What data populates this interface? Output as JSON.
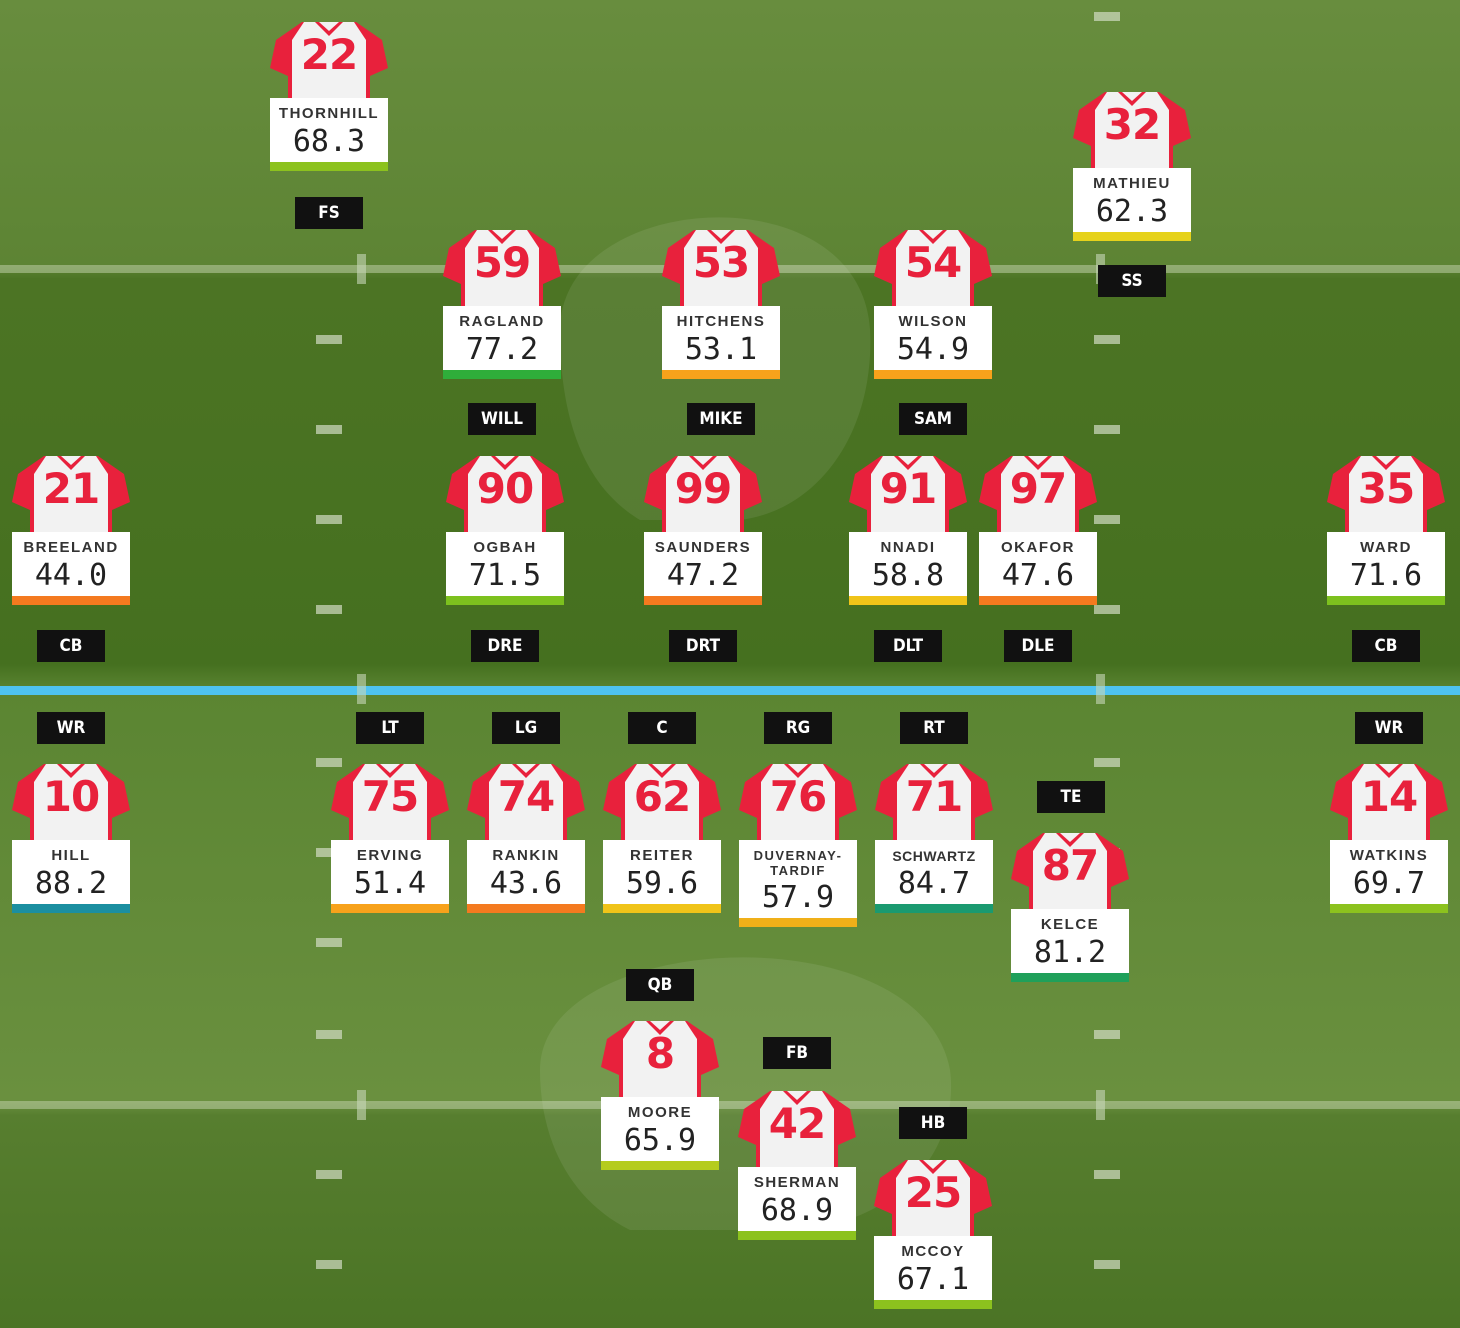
{
  "colors": {
    "jersey_primary": "#e8213c",
    "jersey_body": "#f2f2f2",
    "line_of_scrimmage": "#4ec3f0",
    "label_bg": "#111111",
    "grade_colors": {
      "elite": "#1b8fa0",
      "high": "#1fa05a",
      "good": "#3fb04a",
      "above_avg": "#8cc21e",
      "avg": "#f0c419",
      "below_avg": "#f7a21b",
      "poor": "#f47a1f"
    }
  },
  "players": [
    {
      "number": "22",
      "name": "THORNHILL",
      "grade": "68.3",
      "position": "FS",
      "grade_color": "#8cc21e"
    },
    {
      "number": "32",
      "name": "MATHIEU",
      "grade": "62.3",
      "position": "SS",
      "grade_color": "#e6d21b"
    },
    {
      "number": "59",
      "name": "RAGLAND",
      "grade": "77.2",
      "position": "WILL",
      "grade_color": "#2fae3a"
    },
    {
      "number": "53",
      "name": "HITCHENS",
      "grade": "53.1",
      "position": "MIKE",
      "grade_color": "#f7a21b"
    },
    {
      "number": "54",
      "name": "WILSON",
      "grade": "54.9",
      "position": "SAM",
      "grade_color": "#f7a21b"
    },
    {
      "number": "21",
      "name": "BREELAND",
      "grade": "44.0",
      "position": "CB",
      "grade_color": "#f47a1f"
    },
    {
      "number": "90",
      "name": "OGBAH",
      "grade": "71.5",
      "position": "DRE",
      "grade_color": "#7dc11e"
    },
    {
      "number": "99",
      "name": "SAUNDERS",
      "grade": "47.2",
      "position": "DRT",
      "grade_color": "#f47a1f"
    },
    {
      "number": "91",
      "name": "NNADI",
      "grade": "58.8",
      "position": "DLT",
      "grade_color": "#f0c419"
    },
    {
      "number": "97",
      "name": "OKAFOR",
      "grade": "47.6",
      "position": "DLE",
      "grade_color": "#f47a1f"
    },
    {
      "number": "35",
      "name": "WARD",
      "grade": "71.6",
      "position": "CB",
      "grade_color": "#7dc11e"
    },
    {
      "number": "10",
      "name": "HILL",
      "grade": "88.2",
      "position": "WR",
      "grade_color": "#1b8fa0"
    },
    {
      "number": "75",
      "name": "ERVING",
      "grade": "51.4",
      "position": "LT",
      "grade_color": "#f7a21b"
    },
    {
      "number": "74",
      "name": "RANKIN",
      "grade": "43.6",
      "position": "LG",
      "grade_color": "#f47a1f"
    },
    {
      "number": "62",
      "name": "REITER",
      "grade": "59.6",
      "position": "C",
      "grade_color": "#f0c419"
    },
    {
      "number": "76",
      "name": "DUVERNAY-TARDIF",
      "grade": "57.9",
      "position": "RG",
      "grade_color": "#f0b019"
    },
    {
      "number": "71",
      "name": "SCHWARTZ",
      "grade": "84.7",
      "position": "RT",
      "grade_color": "#1a9a70"
    },
    {
      "number": "87",
      "name": "KELCE",
      "grade": "81.2",
      "position": "TE",
      "grade_color": "#1fa05a"
    },
    {
      "number": "14",
      "name": "WATKINS",
      "grade": "69.7",
      "position": "WR",
      "grade_color": "#8cc21e"
    },
    {
      "number": "8",
      "name": "MOORE",
      "grade": "65.9",
      "position": "QB",
      "grade_color": "#b5cc1e"
    },
    {
      "number": "42",
      "name": "SHERMAN",
      "grade": "68.9",
      "position": "FB",
      "grade_color": "#8cc21e"
    },
    {
      "number": "25",
      "name": "MCCOY",
      "grade": "67.1",
      "position": "HB",
      "grade_color": "#8cc21e"
    }
  ]
}
